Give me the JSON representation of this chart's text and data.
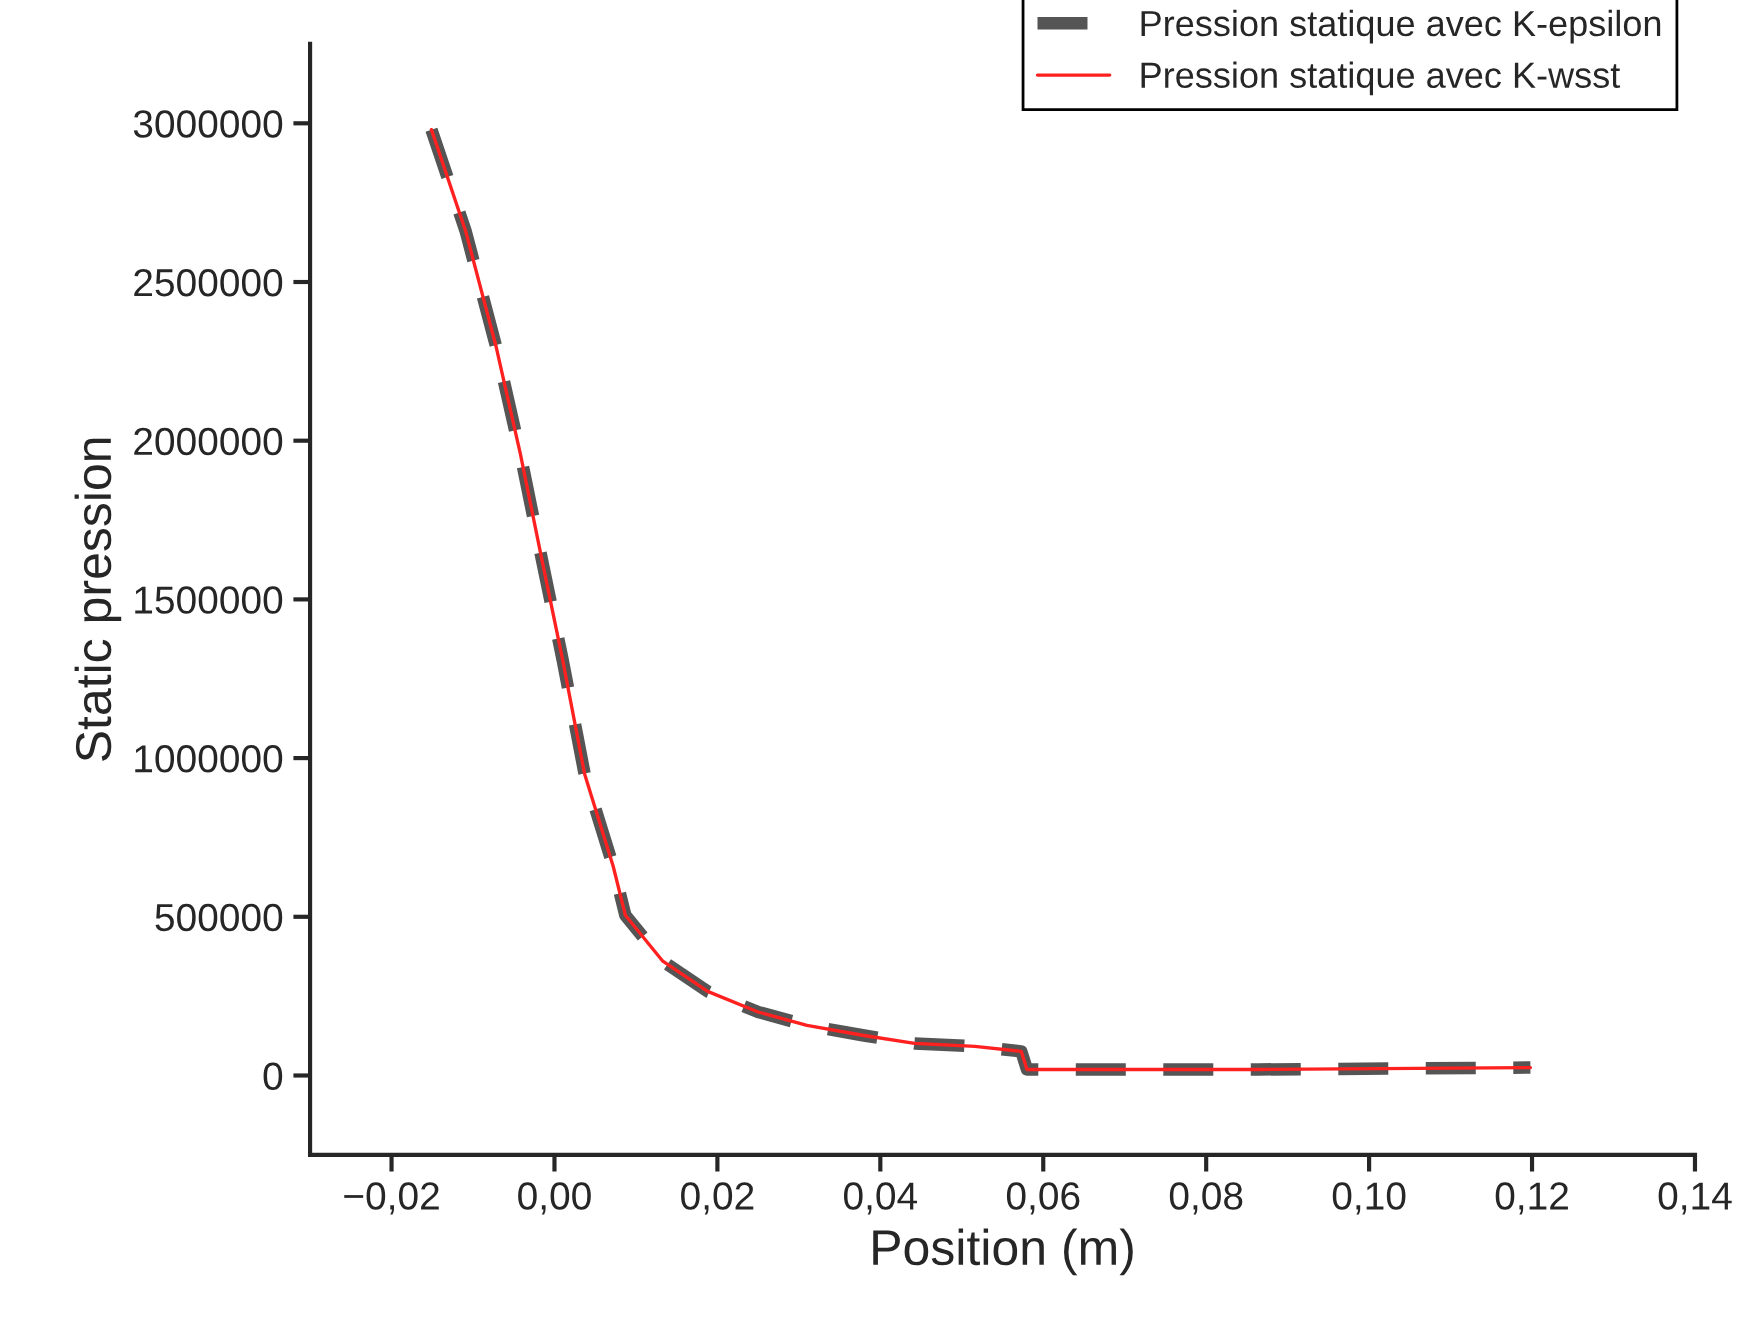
{
  "chart_data": {
    "type": "line",
    "xlabel": "Position (m)",
    "ylabel": "Static pression",
    "xlim": [
      -0.03,
      0.14
    ],
    "ylim": [
      -250000,
      3250000
    ],
    "xticks": [
      {
        "value": -0.02,
        "label": "−0,02"
      },
      {
        "value": 0.0,
        "label": "0,00"
      },
      {
        "value": 0.02,
        "label": "0,02"
      },
      {
        "value": 0.04,
        "label": "0,04"
      },
      {
        "value": 0.06,
        "label": "0,06"
      },
      {
        "value": 0.08,
        "label": "0,08"
      },
      {
        "value": 0.1,
        "label": "0,10"
      },
      {
        "value": 0.12,
        "label": "0,12"
      },
      {
        "value": 0.14,
        "label": "0,14"
      }
    ],
    "yticks": [
      0,
      500000,
      1000000,
      1500000,
      2000000,
      2500000,
      3000000
    ],
    "legend": "top right",
    "grid": false,
    "series": [
      {
        "name": "Pression statique avec K-epsilon",
        "color": "#555555",
        "line_style": "dashed",
        "x": [
          -0.0151,
          -0.0109,
          -0.0072,
          -0.0042,
          -0.0015,
          0.001,
          0.0037,
          0.0072,
          0.0087,
          0.0133,
          0.0188,
          0.025,
          0.031,
          0.038,
          0.0442,
          0.0516,
          0.0573,
          0.058,
          0.0864,
          0.1198
        ],
        "values": [
          2980000,
          2660000,
          2300000,
          1960000,
          1620000,
          1310000,
          950000,
          660000,
          505000,
          360000,
          265000,
          200000,
          158000,
          126000,
          101000,
          92000,
          76000,
          19000,
          19000,
          25000
        ]
      },
      {
        "name": "Pression statique avec K-wsst",
        "color": "#ff2020",
        "line_style": "solid",
        "x": [
          -0.0151,
          -0.0109,
          -0.0072,
          -0.0042,
          -0.0015,
          0.001,
          0.0037,
          0.0072,
          0.0087,
          0.0133,
          0.0188,
          0.025,
          0.031,
          0.038,
          0.0442,
          0.0516,
          0.0573,
          0.058,
          0.0864,
          0.1198
        ],
        "values": [
          2980000,
          2660000,
          2300000,
          1960000,
          1620000,
          1310000,
          950000,
          660000,
          505000,
          360000,
          265000,
          200000,
          158000,
          126000,
          101000,
          92000,
          76000,
          19000,
          19000,
          25000
        ]
      }
    ]
  }
}
